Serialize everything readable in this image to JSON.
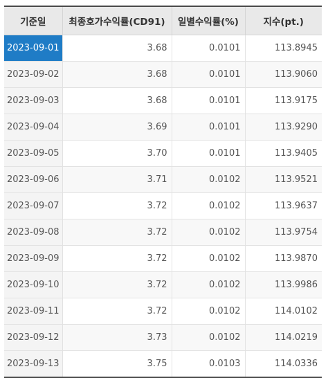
{
  "table": {
    "columns": [
      "기준일",
      "최종호가수익률(CD91)",
      "일별수익률(%)",
      "지수(pt.)"
    ],
    "selected_row": 0,
    "rows": [
      {
        "date": "2023-09-01",
        "rate": "3.68",
        "daily": "0.0101",
        "index": "113.8945"
      },
      {
        "date": "2023-09-02",
        "rate": "3.68",
        "daily": "0.0101",
        "index": "113.9060"
      },
      {
        "date": "2023-09-03",
        "rate": "3.68",
        "daily": "0.0101",
        "index": "113.9175"
      },
      {
        "date": "2023-09-04",
        "rate": "3.69",
        "daily": "0.0101",
        "index": "113.9290"
      },
      {
        "date": "2023-09-05",
        "rate": "3.70",
        "daily": "0.0101",
        "index": "113.9405"
      },
      {
        "date": "2023-09-06",
        "rate": "3.71",
        "daily": "0.0102",
        "index": "113.9521"
      },
      {
        "date": "2023-09-07",
        "rate": "3.72",
        "daily": "0.0102",
        "index": "113.9637"
      },
      {
        "date": "2023-09-08",
        "rate": "3.72",
        "daily": "0.0102",
        "index": "113.9754"
      },
      {
        "date": "2023-09-09",
        "rate": "3.72",
        "daily": "0.0102",
        "index": "113.9870"
      },
      {
        "date": "2023-09-10",
        "rate": "3.72",
        "daily": "0.0102",
        "index": "113.9986"
      },
      {
        "date": "2023-09-11",
        "rate": "3.72",
        "daily": "0.0102",
        "index": "114.0102"
      },
      {
        "date": "2023-09-12",
        "rate": "3.73",
        "daily": "0.0102",
        "index": "114.0219"
      },
      {
        "date": "2023-09-13",
        "rate": "3.75",
        "daily": "0.0103",
        "index": "114.0336"
      }
    ]
  },
  "colors": {
    "selected_bg": "#1f7cc6",
    "header_bg": "#e9e9e9",
    "date_cell_bg": "#f4f4f4"
  }
}
